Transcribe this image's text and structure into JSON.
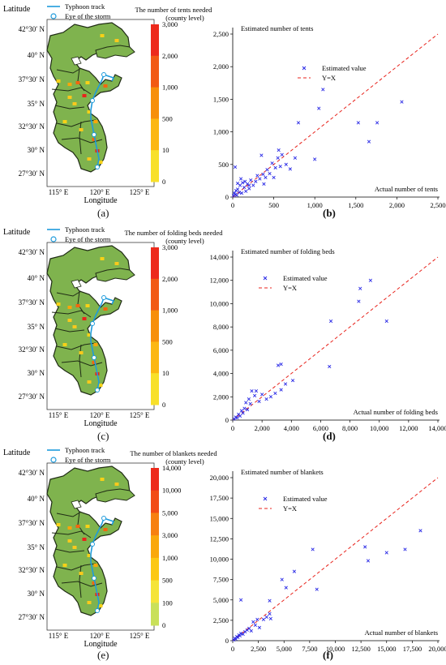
{
  "map_common": {
    "lat_title": "Latitude",
    "lon_title": "Longitude",
    "lat_ticks": [
      "42°30′ N",
      "40° N",
      "37°30′ N",
      "35° N",
      "32°30′ N",
      "30° N",
      "27°30′ N"
    ],
    "lon_ticks": [
      "115° E",
      "120° E",
      "125° E"
    ],
    "track_label": "Typhoon track",
    "eye_label": "Eye of the storm"
  },
  "panels": [
    {
      "caption": "(a)",
      "map_title_line1": "The number of tents needed",
      "map_title_line2": "(county level)",
      "colorbar_ticks": [
        "3,000",
        "2,000",
        "1,000",
        "500",
        "10",
        "0"
      ],
      "scatter_caption": "(b)"
    },
    {
      "caption": "(c)",
      "map_title_line1": "The number of folding beds needed",
      "map_title_line2": "(county level)",
      "colorbar_ticks": [
        "3,000",
        "2,000",
        "1,000",
        "500",
        "10",
        "0"
      ],
      "scatter_caption": "(d)"
    },
    {
      "caption": "(e)",
      "map_title_line1": "The number of blankets needed",
      "map_title_line2": "(county level)",
      "colorbar_ticks": [
        "14,000",
        "10,000",
        "5,000",
        "3,000",
        "1,000",
        "500",
        "100",
        "0"
      ],
      "scatter_caption": "(f)"
    }
  ],
  "colors": {
    "map_green": "#7fb34e",
    "track_blue": "#1e9bdc",
    "point_blue": "#2a2ae6",
    "ref_red": "#e8231c"
  },
  "chart_data": [
    {
      "type": "scatter",
      "title": "",
      "xlabel": "Actual number of tents",
      "ylabel": "Estimated number of tents",
      "xlim": [
        0,
        2500
      ],
      "ylim": [
        0,
        2500
      ],
      "xticks": [
        "0",
        "500",
        "1,000",
        "1,500",
        "2,000",
        "2,500"
      ],
      "yticks": [
        "0",
        "500",
        "1,000",
        "1,500",
        "2,000",
        "2,500"
      ],
      "legend": "right",
      "series": [
        {
          "name": "Estimated value",
          "marker": "x",
          "points": [
            [
              10,
              20
            ],
            [
              20,
              60
            ],
            [
              30,
              40
            ],
            [
              40,
              100
            ],
            [
              50,
              30
            ],
            [
              60,
              120
            ],
            [
              80,
              70
            ],
            [
              90,
              180
            ],
            [
              110,
              60
            ],
            [
              120,
              220
            ],
            [
              140,
              150
            ],
            [
              160,
              90
            ],
            [
              180,
              200
            ],
            [
              200,
              130
            ],
            [
              220,
              260
            ],
            [
              250,
              180
            ],
            [
              280,
              240
            ],
            [
              300,
              330
            ],
            [
              330,
              280
            ],
            [
              350,
              640
            ],
            [
              370,
              350
            ],
            [
              380,
              200
            ],
            [
              400,
              300
            ],
            [
              420,
              420
            ],
            [
              450,
              360
            ],
            [
              480,
              520
            ],
            [
              500,
              300
            ],
            [
              520,
              450
            ],
            [
              550,
              600
            ],
            [
              560,
              720
            ],
            [
              580,
              470
            ],
            [
              600,
              650
            ],
            [
              650,
              500
            ],
            [
              700,
              430
            ],
            [
              760,
              600
            ],
            [
              800,
              1140
            ],
            [
              1000,
              580
            ],
            [
              1050,
              1360
            ],
            [
              1100,
              1650
            ],
            [
              1530,
              1140
            ],
            [
              1660,
              850
            ],
            [
              1760,
              1140
            ],
            [
              2060,
              1460
            ],
            [
              30,
              460
            ],
            [
              60,
              210
            ],
            [
              100,
              280
            ],
            [
              150,
              240
            ],
            [
              200,
              180
            ]
          ]
        },
        {
          "name": "Y=X",
          "style": "dashed",
          "line": [
            [
              0,
              0
            ],
            [
              2500,
              2500
            ]
          ]
        }
      ]
    },
    {
      "type": "scatter",
      "title": "",
      "xlabel": "Actual number of folding beds",
      "ylabel": "Estimated number of folding beds",
      "xlim": [
        0,
        14000
      ],
      "ylim": [
        0,
        14000
      ],
      "xticks": [
        "0",
        "2,000",
        "4,000",
        "6,000",
        "8,000",
        "10,000",
        "12,000",
        "14,000"
      ],
      "yticks": [
        "0",
        "2,000",
        "4,000",
        "6,000",
        "8,000",
        "10,000",
        "12,000",
        "14,000"
      ],
      "legend": "upper-left",
      "series": [
        {
          "name": "Estimated value",
          "marker": "x",
          "points": [
            [
              100,
              100
            ],
            [
              200,
              250
            ],
            [
              300,
              200
            ],
            [
              400,
              500
            ],
            [
              500,
              350
            ],
            [
              600,
              800
            ],
            [
              700,
              600
            ],
            [
              800,
              1000
            ],
            [
              900,
              1500
            ],
            [
              1000,
              900
            ],
            [
              1100,
              1800
            ],
            [
              1200,
              1400
            ],
            [
              1300,
              2500
            ],
            [
              1500,
              2100
            ],
            [
              1600,
              2500
            ],
            [
              1800,
              1600
            ],
            [
              2000,
              2200
            ],
            [
              2300,
              1800
            ],
            [
              2600,
              2000
            ],
            [
              2900,
              2300
            ],
            [
              3100,
              4700
            ],
            [
              3300,
              4800
            ],
            [
              3300,
              2600
            ],
            [
              3600,
              3100
            ],
            [
              4100,
              3400
            ],
            [
              6600,
              4600
            ],
            [
              6700,
              8500
            ],
            [
              8600,
              10200
            ],
            [
              8700,
              11300
            ],
            [
              9400,
              12000
            ],
            [
              10500,
              8500
            ]
          ]
        },
        {
          "name": "Y=X",
          "style": "dashed",
          "line": [
            [
              0,
              0
            ],
            [
              14000,
              14000
            ]
          ]
        }
      ]
    },
    {
      "type": "scatter",
      "title": "",
      "xlabel": "Actual number of blankets",
      "ylabel": "Estimated number of blankets",
      "xlim": [
        0,
        20000
      ],
      "ylim": [
        0,
        20000
      ],
      "xticks": [
        "0",
        "2,500",
        "5,000",
        "7,500",
        "10,000",
        "12,500",
        "15,000",
        "17,500",
        "20,000"
      ],
      "yticks": [
        "0",
        "2,500",
        "5,000",
        "7,500",
        "10,000",
        "12,500",
        "15,000",
        "17,500",
        "20,000"
      ],
      "legend": "upper-left",
      "series": [
        {
          "name": "Estimated value",
          "marker": "x",
          "points": [
            [
              100,
              100
            ],
            [
              200,
              300
            ],
            [
              300,
              200
            ],
            [
              400,
              500
            ],
            [
              500,
              400
            ],
            [
              600,
              700
            ],
            [
              700,
              600
            ],
            [
              800,
              900
            ],
            [
              1000,
              800
            ],
            [
              1200,
              1100
            ],
            [
              1400,
              1300
            ],
            [
              1600,
              1500
            ],
            [
              1800,
              1200
            ],
            [
              2000,
              2300
            ],
            [
              2200,
              1900
            ],
            [
              2400,
              2600
            ],
            [
              2600,
              1600
            ],
            [
              3000,
              2600
            ],
            [
              3300,
              2900
            ],
            [
              3600,
              4900
            ],
            [
              3600,
              3300
            ],
            [
              3700,
              2700
            ],
            [
              4800,
              7500
            ],
            [
              5200,
              6500
            ],
            [
              6000,
              8500
            ],
            [
              7800,
              11200
            ],
            [
              8200,
              6300
            ],
            [
              12900,
              11500
            ],
            [
              13200,
              9800
            ],
            [
              15000,
              10800
            ],
            [
              16800,
              11200
            ],
            [
              18300,
              13500
            ],
            [
              800,
              5000
            ]
          ]
        },
        {
          "name": "Y=X",
          "style": "dashed",
          "line": [
            [
              0,
              0
            ],
            [
              20000,
              20000
            ]
          ]
        }
      ]
    }
  ]
}
